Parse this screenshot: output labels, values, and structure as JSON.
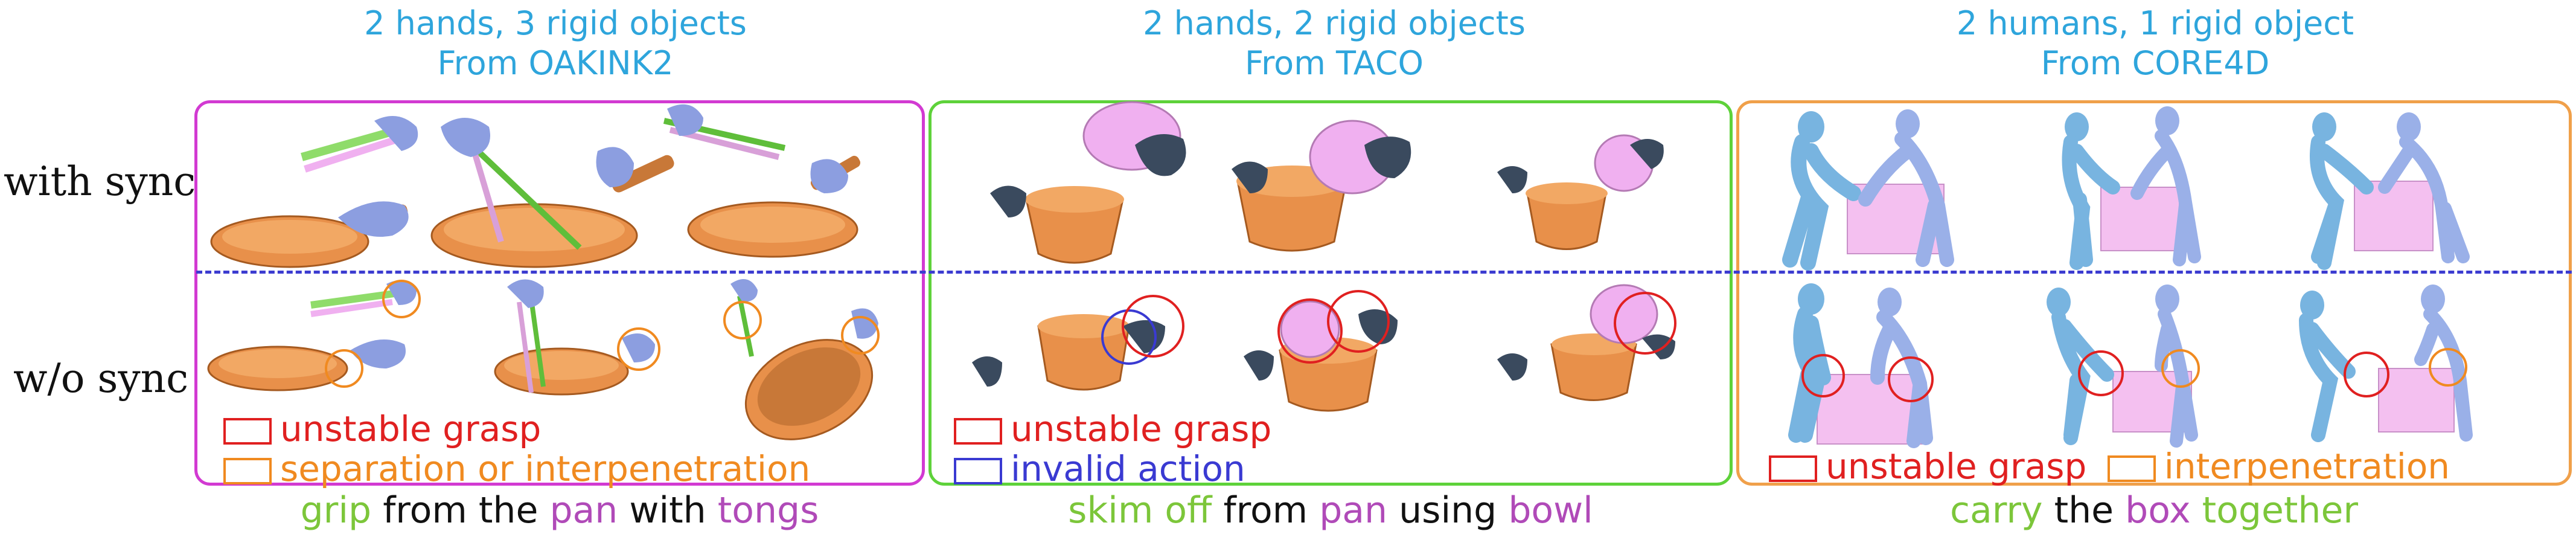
{
  "columns": [
    {
      "title_line1": "2 hands, 3 rigid objects",
      "title_line2": "From OAKINK2"
    },
    {
      "title_line1": "2 hands, 2 rigid objects",
      "title_line2": "From TACO"
    },
    {
      "title_line1": "2 humans, 1 rigid object",
      "title_line2": "From CORE4D"
    }
  ],
  "rows": {
    "with_sync": "with sync",
    "without_sync": "w/o sync"
  },
  "legends": {
    "panel1": {
      "unstable": "unstable grasp",
      "separation": "separation or interpenetration"
    },
    "panel2": {
      "unstable": "unstable grasp",
      "invalid": "invalid action"
    },
    "panel3": {
      "unstable": "unstable grasp",
      "interpenetration": "interpenetration"
    }
  },
  "captions": {
    "panel1": [
      "grip",
      "from the",
      "pan",
      "with",
      "tongs"
    ],
    "panel2": [
      "skim off",
      "from",
      "pan",
      "using",
      "bowl"
    ],
    "panel3": [
      "carry",
      "the",
      "box",
      "together"
    ]
  },
  "colors": {
    "title": "#2ea5dc",
    "panel1_border": "#d23ad2",
    "panel2_border": "#5ed23a",
    "panel3_border": "#f0a04a",
    "unstable": "#e02020",
    "separation": "#f08a20",
    "invalid": "#3a3ad2",
    "verb": "#7cc63a",
    "object": "#b04ab8",
    "pan": "#e8904a",
    "hand": "#8c9ee0",
    "bowl": "#f0b0f0",
    "human": "#78b4e0",
    "box": "#f4c0f0"
  }
}
